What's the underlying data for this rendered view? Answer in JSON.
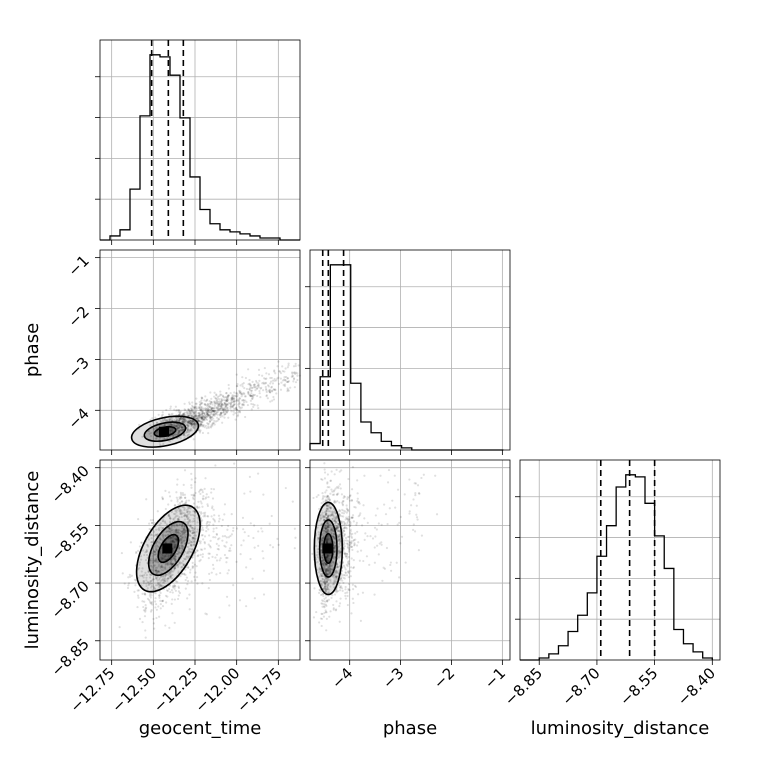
{
  "chart_data": {
    "type": "corner",
    "parameters": [
      "geocent_time",
      "phase",
      "luminosity_distance"
    ],
    "labels": {
      "geocent_time": "geocent_time",
      "phase": "phase",
      "luminosity_distance": "luminosity_distance"
    },
    "ranges": {
      "geocent_time": [
        -12.82,
        -11.62
      ],
      "phase": [
        -4.78,
        -0.85
      ],
      "luminosity_distance": [
        -8.9,
        -8.38
      ]
    },
    "ticks": {
      "geocent_time": {
        "values": [
          -12.75,
          -12.5,
          -12.25,
          -12.0,
          -11.75
        ],
        "labels": [
          "−12.75",
          "−12.50",
          "−12.25",
          "−12.00",
          "−11.75"
        ]
      },
      "phase": {
        "values": [
          -4,
          -3,
          -2,
          -1
        ],
        "labels": [
          "−4",
          "−3",
          "−2",
          "−1"
        ]
      },
      "luminosity_distance": {
        "values": [
          -8.85,
          -8.7,
          -8.55,
          -8.4
        ],
        "labels": [
          "−8.85",
          "−8.70",
          "−8.55",
          "−8.40"
        ]
      }
    },
    "histograms": {
      "geocent_time": {
        "bin_edges": [
          -12.82,
          -12.76,
          -12.7,
          -12.64,
          -12.58,
          -12.52,
          -12.46,
          -12.4,
          -12.34,
          -12.28,
          -12.22,
          -12.16,
          -12.1,
          -12.04,
          -11.98,
          -11.92,
          -11.86,
          -11.8,
          -11.74,
          -11.68,
          -11.62
        ],
        "counts": [
          0,
          2,
          5,
          25,
          61,
          91,
          90,
          81,
          60,
          31,
          15,
          8,
          5,
          4,
          3,
          2,
          1,
          1,
          0,
          0
        ],
        "quantiles": [
          -12.51,
          -12.41,
          -12.32
        ]
      },
      "phase": {
        "bin_edges": [
          -4.78,
          -4.58,
          -4.38,
          -4.18,
          -3.98,
          -3.78,
          -3.58,
          -3.38,
          -3.18,
          -2.98,
          -2.78,
          -2.58,
          -2.38,
          -2.18,
          -1.98,
          -1.78,
          -1.58,
          -1.38,
          -1.18,
          -0.98
        ],
        "counts": [
          3,
          34,
          86,
          86,
          31,
          13,
          8,
          4,
          2,
          1,
          0,
          0,
          0,
          0,
          0,
          0,
          0,
          0,
          0
        ],
        "quantiles": [
          -4.53,
          -4.42,
          -4.12
        ]
      },
      "luminosity_distance": {
        "bin_edges": [
          -8.9,
          -8.875,
          -8.85,
          -8.825,
          -8.8,
          -8.775,
          -8.75,
          -8.725,
          -8.7,
          -8.675,
          -8.65,
          -8.625,
          -8.6,
          -8.575,
          -8.55,
          -8.525,
          -8.5,
          -8.475,
          -8.45,
          -8.425,
          -8.4
        ],
        "counts": [
          0,
          0,
          1,
          3,
          7,
          14,
          22,
          33,
          51,
          66,
          85,
          91,
          90,
          77,
          61,
          45,
          15,
          8,
          4,
          1
        ],
        "quantiles": [
          -8.69,
          -8.615,
          -8.55
        ]
      }
    },
    "joint_2d": [
      {
        "x": "geocent_time",
        "y": "phase",
        "peak": [
          -12.43,
          -4.42
        ],
        "contour_levels": 3
      },
      {
        "x": "geocent_time",
        "y": "luminosity_distance",
        "peak": [
          -12.41,
          -8.61
        ],
        "contour_levels": 3
      },
      {
        "x": "phase",
        "y": "luminosity_distance",
        "peak": [
          -4.42,
          -8.61
        ],
        "contour_levels": 3
      }
    ],
    "grid": true,
    "colors": {
      "points": "#000000",
      "line": "#000000",
      "grid": "#b0b0b0"
    }
  }
}
